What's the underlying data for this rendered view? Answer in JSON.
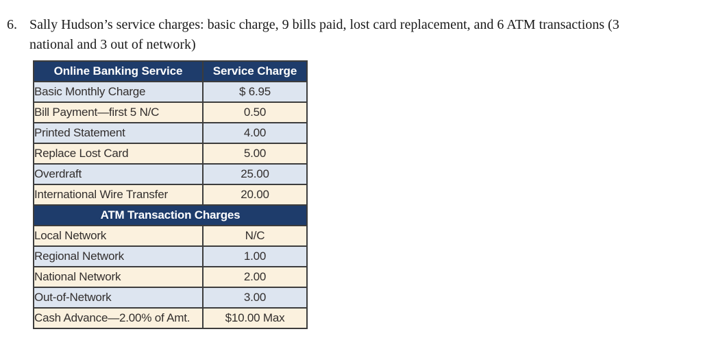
{
  "question": {
    "number": "6.",
    "line1": "Sally Hudson’s service charges: basic charge, 9 bills paid, lost card replacement, and 6 ATM transactions (3",
    "line2": "national and 3 out of network)"
  },
  "table": {
    "columns": [
      "Online Banking Service",
      "Service Charge"
    ],
    "rows": [
      {
        "label": "Basic Monthly Charge",
        "value": "$ 6.95"
      },
      {
        "label": "Bill Payment—first 5 N/C",
        "value": "0.50"
      },
      {
        "label": "Printed Statement",
        "value": "4.00"
      },
      {
        "label": "Replace Lost Card",
        "value": "5.00"
      },
      {
        "label": "Overdraft",
        "value": "25.00"
      },
      {
        "label": "International Wire Transfer",
        "value": "20.00"
      }
    ],
    "section_header": "ATM Transaction Charges",
    "atm_rows": [
      {
        "label": "Local Network",
        "value": "N/C"
      },
      {
        "label": "Regional Network",
        "value": "1.00"
      },
      {
        "label": "National Network",
        "value": "2.00"
      },
      {
        "label": "Out-of-Network",
        "value": "3.00"
      },
      {
        "label": "Cash Advance—2.00% of Amt.",
        "value": "$10.00 Max"
      }
    ]
  },
  "theme": {
    "header_navy": "#1e3c6b",
    "row_blue": "#dde5f0",
    "row_cream": "#fbf1de",
    "border": "#3c3c3c",
    "header_text": "#ffffff",
    "body_text": "#322e2d"
  }
}
